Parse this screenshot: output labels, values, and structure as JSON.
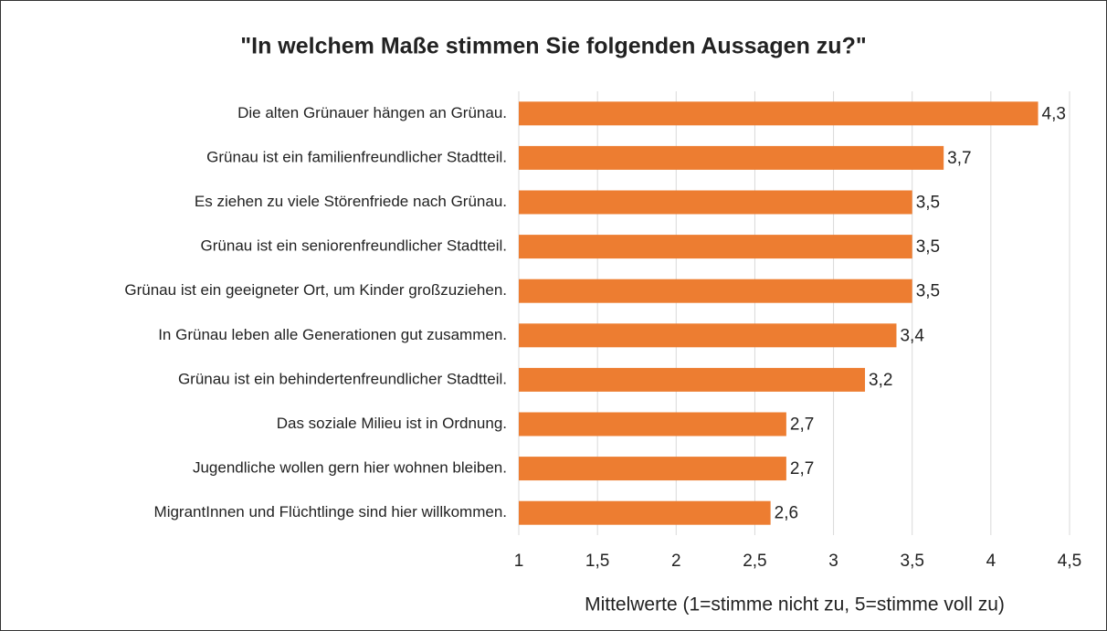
{
  "chart_data": {
    "type": "bar",
    "orientation": "horizontal",
    "title": "\"In welchem Maße stimmen Sie folgenden Aussagen zu?\"",
    "x_label": "Mittelwerte (1=stimme nicht zu, 5=stimme voll zu)",
    "categories": [
      "Die alten Grünauer hängen an Grünau.",
      "Grünau ist ein familienfreundlicher Stadtteil.",
      "Es ziehen zu viele Störenfriede nach Grünau.",
      "Grünau ist ein seniorenfreundlicher Stadtteil.",
      "Grünau ist ein geeigneter Ort, um Kinder großzuziehen.",
      "In Grünau leben alle Generationen gut zusammen.",
      "Grünau ist ein behindertenfreundlicher Stadtteil.",
      "Das soziale Milieu ist in Ordnung.",
      "Jugendliche wollen gern hier wohnen bleiben.",
      "MigrantInnen und Flüchtlinge sind hier willkommen."
    ],
    "values": [
      4.3,
      3.7,
      3.5,
      3.5,
      3.5,
      3.4,
      3.2,
      2.7,
      2.7,
      2.6
    ],
    "value_labels": [
      "4,3",
      "3,7",
      "3,5",
      "3,5",
      "3,5",
      "3,4",
      "3,2",
      "2,7",
      "2,7",
      "2,6"
    ],
    "color": "#ed7d31",
    "xlim": [
      1,
      4.5
    ],
    "xticks": [
      1,
      {
        "value": 1.5,
        "label": "1,5"
      },
      2,
      {
        "value": 2.5,
        "label": "2,5"
      },
      3,
      {
        "value": 3.5,
        "label": "3,5"
      },
      4,
      {
        "value": 4.5,
        "label": "4,5"
      }
    ],
    "grid": true
  }
}
